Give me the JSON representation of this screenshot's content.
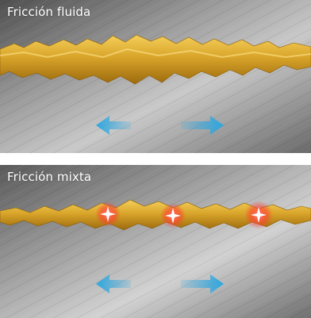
{
  "panels": [
    {
      "title": "Fricción fluida"
    },
    {
      "title": "Fricción mixta"
    }
  ],
  "colors": {
    "lubricant": "#e2b53a",
    "lubricant_dark": "#b07a12",
    "arrow": "#2da7e0",
    "contact_glow": "#ff3b2e",
    "metal_light": "#d7d7d7",
    "metal_dark": "#555555"
  }
}
